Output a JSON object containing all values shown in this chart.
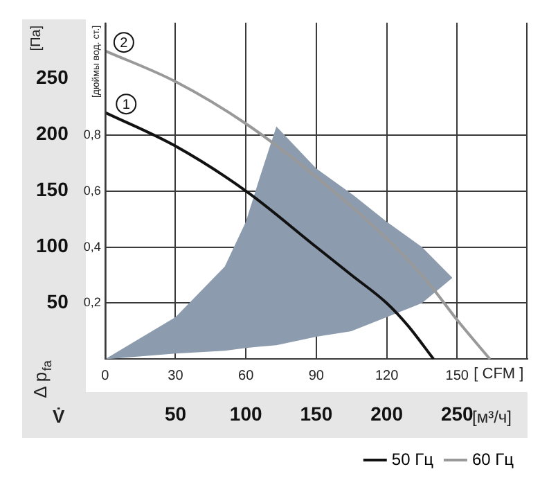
{
  "chart_data": {
    "type": "line",
    "xlabel": "[ CFM ]",
    "x2label": "[м³/ч]",
    "ylabel": "[дюймы вод. ст.]",
    "y2label": "[Па]",
    "xlim": [
      0,
      180
    ],
    "xticks": [
      0,
      30,
      60,
      90,
      120,
      150
    ],
    "x2lim": [
      0,
      300
    ],
    "x2ticks": [
      50,
      100,
      150,
      200,
      250
    ],
    "ylim": [
      0,
      1.2
    ],
    "yticks": [
      {
        "value": 0.2,
        "label": "0,2"
      },
      {
        "value": 0.4,
        "label": "0,4"
      },
      {
        "value": 0.6,
        "label": "0,6"
      },
      {
        "value": 0.8,
        "label": "0,8"
      }
    ],
    "y2lim": [
      0,
      300
    ],
    "y2ticks": [
      50,
      100,
      150,
      200,
      250
    ],
    "grid": true,
    "legend": "bottom right",
    "marker": "none",
    "line_style": "solid",
    "series": [
      {
        "type": "area",
        "color": "#8c9cae",
        "x": [
          0,
          30,
          51,
          60,
          66,
          73,
          90,
          105,
          120,
          135,
          148
        ],
        "values": [
          null,
          null,
          null,
          null,
          null,
          null,
          null,
          null,
          null,
          null,
          null
        ],
        "upper": [
          0,
          0.15,
          0.33,
          0.49,
          0.65,
          0.83,
          0.68,
          0.59,
          0.49,
          0.4,
          0.29
        ],
        "lower": [
          0,
          0.02,
          0.03,
          0.04,
          0.045,
          0.05,
          0.08,
          0.1,
          0.15,
          0.2,
          0.29
        ]
      },
      {
        "name": "50 Гц",
        "color": "#111111",
        "x": [
          0,
          30,
          60,
          90,
          105,
          120,
          129,
          140
        ],
        "values": [
          0.88,
          0.76,
          0.6,
          0.4,
          0.3,
          0.2,
          0.12,
          0
        ]
      },
      {
        "name": "60 Гц",
        "color": "#999999",
        "x": [
          0,
          30,
          60,
          90,
          120,
          137,
          150,
          164
        ],
        "values": [
          1.1,
          0.99,
          0.84,
          0.65,
          0.43,
          0.28,
          0.14,
          0
        ]
      }
    ],
    "annotations": [
      "Δ p$_{fa}$",
      "V̇",
      {
        "text": "1",
        "x": 9,
        "y": 0.91
      },
      {
        "text": "2",
        "x": 8,
        "y": 1.13
      }
    ]
  }
}
